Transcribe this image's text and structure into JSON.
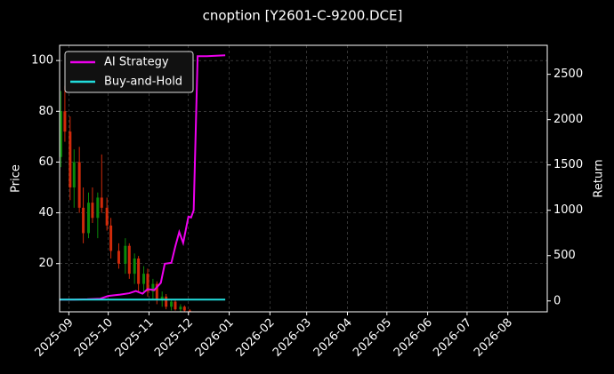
{
  "chart_data": {
    "type": "candlestick",
    "title": "cnoption [Y2601-C-9200.DCE]",
    "ylabel": "Price",
    "y2label": "Return",
    "xlim": [
      "2025-08-25",
      "2026-08-31"
    ],
    "xticks": [
      {
        "value": "2025-09-01",
        "label": "2025-09"
      },
      {
        "value": "2025-10-01",
        "label": "2025-10"
      },
      {
        "value": "2025-11-01",
        "label": "2025-11"
      },
      {
        "value": "2025-12-01",
        "label": "2025-12"
      },
      {
        "value": "2026-01-01",
        "label": "2026-01"
      },
      {
        "value": "2026-02-01",
        "label": "2026-02"
      },
      {
        "value": "2026-03-01",
        "label": "2026-03"
      },
      {
        "value": "2026-04-01",
        "label": "2026-04"
      },
      {
        "value": "2026-05-01",
        "label": "2026-05"
      },
      {
        "value": "2026-06-01",
        "label": "2026-06"
      },
      {
        "value": "2026-07-01",
        "label": "2026-07"
      },
      {
        "value": "2026-08-01",
        "label": "2026-08"
      }
    ],
    "ylim": [
      1,
      106
    ],
    "yticks": [
      20,
      40,
      60,
      80,
      100
    ],
    "y2lim": [
      -120,
      2820
    ],
    "y2ticks": [
      0,
      500,
      1000,
      1500,
      2000,
      2500
    ],
    "grid": true,
    "legend": "upper left",
    "candles": {
      "up_color": "#0a8a0a",
      "down_color": "#d02a0a",
      "x": [
        "2025-08-26",
        "2025-08-29",
        "2025-09-02",
        "2025-09-05",
        "2025-09-09",
        "2025-09-12",
        "2025-09-16",
        "2025-09-19",
        "2025-09-23",
        "2025-09-26",
        "2025-09-30",
        "2025-10-03",
        "2025-10-09",
        "2025-10-14",
        "2025-10-17",
        "2025-10-21",
        "2025-10-24",
        "2025-10-28",
        "2025-10-31",
        "2025-11-04",
        "2025-11-07",
        "2025-11-11",
        "2025-11-14",
        "2025-11-18",
        "2025-11-21",
        "2025-11-25",
        "2025-11-28",
        "2025-12-02"
      ],
      "open": [
        62,
        80,
        72,
        50,
        60,
        42,
        32,
        44,
        38,
        46,
        42,
        35,
        25,
        20,
        27,
        16,
        22,
        12,
        16,
        9,
        12,
        6,
        7,
        3,
        5,
        2,
        3,
        1.5
      ],
      "high": [
        88,
        90,
        78,
        65,
        66,
        50,
        48,
        50,
        48,
        63,
        46,
        38,
        28,
        30,
        28,
        24,
        23,
        19,
        18,
        14,
        13,
        9,
        8,
        6,
        6,
        4,
        3.5,
        2
      ],
      "low": [
        58,
        68,
        45,
        42,
        40,
        28,
        30,
        36,
        30,
        40,
        33,
        22,
        18,
        16,
        14,
        12,
        9,
        8,
        7,
        6,
        4,
        3,
        2,
        1.5,
        1.5,
        1,
        1,
        1
      ],
      "close": [
        80,
        72,
        50,
        60,
        42,
        32,
        44,
        38,
        46,
        42,
        35,
        25,
        20,
        27,
        16,
        22,
        12,
        16,
        9,
        12,
        6,
        7,
        3,
        5,
        2,
        3,
        1.5,
        1.2
      ]
    },
    "x": [
      "2025-08-25",
      "2025-09-05",
      "2025-09-15",
      "2025-09-25",
      "2025-10-01",
      "2025-10-10",
      "2025-10-17",
      "2025-10-22",
      "2025-10-27",
      "2025-10-31",
      "2025-11-05",
      "2025-11-10",
      "2025-11-13",
      "2025-11-18",
      "2025-11-21",
      "2025-11-24",
      "2025-11-27",
      "2025-12-01",
      "2025-12-03",
      "2025-12-05",
      "2025-12-08",
      "2025-12-15",
      "2025-12-29"
    ],
    "series": [
      {
        "name": "AI Strategy",
        "color": "#ee00ee",
        "axis": "y2",
        "values": [
          15,
          15,
          18,
          25,
          55,
          70,
          85,
          110,
          80,
          130,
          120,
          200,
          410,
          420,
          600,
          760,
          640,
          930,
          920,
          1000,
          2700,
          2700,
          2710
        ]
      },
      {
        "name": "Buy-and-Hold",
        "color": "#22dddd",
        "axis": "y2",
        "values": [
          15,
          15,
          15,
          15,
          15,
          15,
          15,
          15,
          15,
          15,
          15,
          15,
          15,
          15,
          15,
          15,
          15,
          15,
          15,
          15,
          15,
          15,
          15
        ]
      }
    ]
  }
}
